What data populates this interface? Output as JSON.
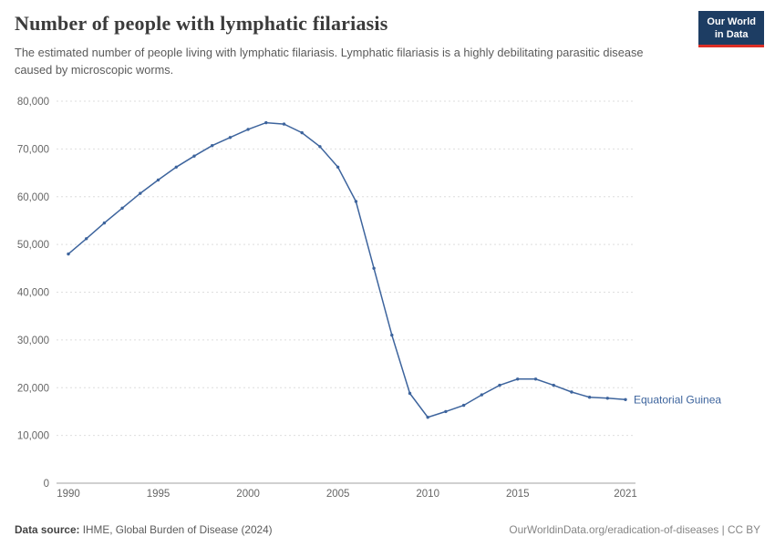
{
  "logo": {
    "line1": "Our World",
    "line2": "in Data"
  },
  "chart_data": {
    "type": "line",
    "title": "Number of people with lymphatic filariasis",
    "subtitle": "The estimated number of people living with lymphatic filariasis. Lymphatic filariasis is a highly debilitating parasitic disease caused by microscopic worms.",
    "xlabel": "",
    "ylabel": "",
    "xlim": [
      1990,
      2021
    ],
    "ylim": [
      0,
      80000
    ],
    "grid": "horizontal-dashed",
    "legend_position": "end-of-line-label",
    "x_ticks": [
      1990,
      1995,
      2000,
      2005,
      2010,
      2015,
      2021
    ],
    "x_tick_labels": [
      "1990",
      "1995",
      "2000",
      "2005",
      "2010",
      "2015",
      "2021"
    ],
    "y_ticks": [
      0,
      10000,
      20000,
      30000,
      40000,
      50000,
      60000,
      70000,
      80000
    ],
    "y_tick_labels": [
      "0",
      "10,000",
      "20,000",
      "30,000",
      "40,000",
      "50,000",
      "60,000",
      "70,000",
      "80,000"
    ],
    "series": [
      {
        "name": "Equatorial Guinea",
        "color": "#3d649d",
        "x": [
          1990,
          1991,
          1992,
          1993,
          1994,
          1995,
          1996,
          1997,
          1998,
          1999,
          2000,
          2001,
          2002,
          2003,
          2004,
          2005,
          2006,
          2007,
          2008,
          2009,
          2010,
          2011,
          2012,
          2013,
          2014,
          2015,
          2016,
          2017,
          2018,
          2019,
          2020,
          2021
        ],
        "values": [
          48000,
          51200,
          54500,
          57600,
          60700,
          63500,
          66200,
          68500,
          70700,
          72400,
          74100,
          75500,
          75200,
          73400,
          70500,
          66200,
          59000,
          45000,
          31000,
          18800,
          13800,
          15000,
          16300,
          18500,
          20500,
          21800,
          21800,
          20500,
          19100,
          18000,
          17800,
          17500
        ]
      }
    ]
  },
  "footer": {
    "source_label": "Data source:",
    "source_text": " IHME, Global Burden of Disease (2024)",
    "link_text": "OurWorldinData.org/eradication-of-diseases | CC BY"
  },
  "colors": {
    "line": "#3d649d",
    "logo_bg": "#1d3d63",
    "logo_accent": "#dc2e26",
    "grid": "#dedede",
    "axis": "#a1a1a1"
  }
}
